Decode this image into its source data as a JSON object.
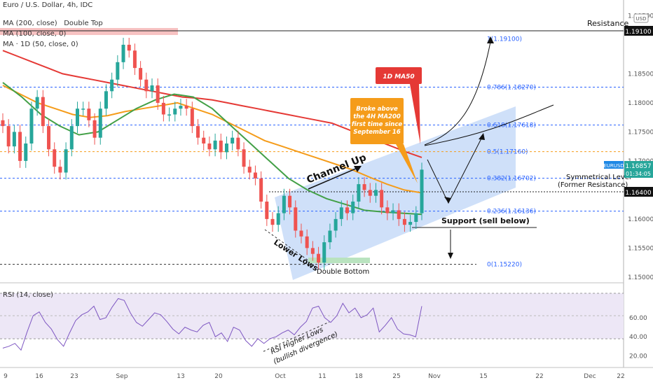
{
  "header": {
    "symbol_line": "Euro / U.S. Dollar, 4h, IDC",
    "ma200_label": "MA (200, close)",
    "ma200_note": "Double Top",
    "ma100_label": "MA (100, close, 0)",
    "ma50d_label": "MA · 1D (50, close, 0)"
  },
  "price_axis": {
    "currency": "USD",
    "ticks": [
      "1.19500",
      "1.18500",
      "1.18000",
      "1.17500",
      "1.17000",
      "1.16500",
      "1.16000",
      "1.15500",
      "1.15000"
    ],
    "top_tick": "1.19500",
    "resistance_tag": "1.19100",
    "symbol_tag": "EURUSD",
    "price_tag": "1.16857",
    "timer_tag": "01:34:05",
    "support_tag": "1.16400"
  },
  "rsi": {
    "label": "RSI (14, close)",
    "ticks": [
      "60.00",
      "40.00",
      "20.00"
    ]
  },
  "time_axis": {
    "labels": [
      "9",
      "16",
      "23",
      "Sep",
      "13",
      "20",
      "Oct",
      "11",
      "18",
      "25",
      "Nov",
      "15",
      "22",
      "Dec",
      "22"
    ]
  },
  "annotations": {
    "resistance": "Resistance",
    "ma50_box": "1D MA50",
    "breakout_note": [
      "Broke above",
      "the 4H MA200",
      "first time since",
      "September 16"
    ],
    "channel": "Channel Up",
    "symmetrical_1": "Symmetrical Level",
    "symmetrical_2": "(Former Resistance)",
    "support": "Support (sell below)",
    "lower_lows": "Lower Lows",
    "double_bottom": "Double Bottom",
    "rsi_note_1": "RSI Higher Lows",
    "rsi_note_2": "(bullish divergence)"
  },
  "fib_levels": [
    {
      "ratio": "1",
      "label": "1(1.19100)",
      "price": 1.191
    },
    {
      "ratio": "0.786",
      "label": "0.786(1.18270)",
      "price": 1.1827
    },
    {
      "ratio": "0.618",
      "label": "0.618(1.17618)",
      "price": 1.17618
    },
    {
      "ratio": "0.5",
      "label": "0.5(1.17160)",
      "price": 1.1716
    },
    {
      "ratio": "0.382",
      "label": "0.382(1.16702)",
      "price": 1.16702
    },
    {
      "ratio": "0.236",
      "label": "0.236(1.16136)",
      "price": 1.16136
    },
    {
      "ratio": "0",
      "label": "0(1.15220)",
      "price": 1.1522
    }
  ],
  "colors": {
    "up": "#26a69a",
    "down": "#ef5350",
    "ma200": "#e53935",
    "ma100": "#f59c1a",
    "ma50d": "#43a047",
    "fib": "#2962ff",
    "channel": "#bbd3f7",
    "rsi_line": "#7e57c2",
    "rsi_band": "#ede7f6"
  },
  "chart_data": {
    "type": "candlestick",
    "title": "Euro / U.S. Dollar, 4h, IDC",
    "ylim": [
      1.1495,
      1.1965
    ],
    "x_range": [
      "Aug 9",
      "Dec 29"
    ],
    "grid": false,
    "ohlc_close_path": [
      1.176,
      1.1725,
      1.175,
      1.17,
      1.173,
      1.179,
      1.181,
      1.176,
      1.172,
      1.169,
      1.168,
      1.172,
      1.176,
      1.179,
      1.179,
      1.177,
      1.174,
      1.179,
      1.182,
      1.184,
      1.187,
      1.19,
      1.189,
      1.186,
      1.184,
      1.182,
      1.183,
      1.18,
      1.178,
      1.178,
      1.179,
      1.1795,
      1.179,
      1.176,
      1.174,
      1.173,
      1.172,
      1.1735,
      1.1715,
      1.173,
      1.174,
      1.172,
      1.169,
      1.168,
      1.167,
      1.163,
      1.16,
      1.159,
      1.161,
      1.164,
      1.162,
      1.158,
      1.157,
      1.155,
      1.154,
      1.1525,
      1.156,
      1.158,
      1.16,
      1.162,
      1.161,
      1.163,
      1.166,
      1.165,
      1.164,
      1.165,
      1.162,
      1.161,
      1.1615,
      1.16,
      1.159,
      1.1595,
      1.161,
      1.1685
    ],
    "series": [
      {
        "name": "MA (200, close)",
        "values": [
          1.189,
          1.188,
          1.187,
          1.186,
          1.185,
          1.1845,
          1.184,
          1.1835,
          1.183,
          1.1825,
          1.182,
          1.1815,
          1.181,
          1.1808,
          1.1805,
          1.18,
          1.1795,
          1.179,
          1.1785,
          1.178,
          1.1775,
          1.177,
          1.1765,
          1.1755,
          1.1745,
          1.1735,
          1.1725,
          1.1715,
          1.1706
        ]
      },
      {
        "name": "MA (100, close, 0)",
        "values": [
          1.183,
          1.1815,
          1.18,
          1.179,
          1.178,
          1.1775,
          1.1778,
          1.1785,
          1.179,
          1.1795,
          1.18,
          1.179,
          1.178,
          1.1765,
          1.175,
          1.1735,
          1.1725,
          1.1715,
          1.1705,
          1.1695,
          1.1685,
          1.1672,
          1.166,
          1.165,
          1.1645
        ]
      },
      {
        "name": "MA · 1D (50, close, 0)",
        "values": [
          1.1835,
          1.181,
          1.178,
          1.176,
          1.1745,
          1.175,
          1.177,
          1.179,
          1.1805,
          1.1815,
          1.181,
          1.179,
          1.176,
          1.173,
          1.17,
          1.167,
          1.165,
          1.1635,
          1.1625,
          1.1615,
          1.1612,
          1.161,
          1.1608
        ]
      }
    ],
    "rsi_ylim": [
      10,
      95
    ],
    "rsi_values": [
      28,
      30,
      33,
      26,
      45,
      62,
      66,
      55,
      48,
      37,
      30,
      44,
      57,
      63,
      66,
      72,
      58,
      60,
      71,
      80,
      78,
      65,
      55,
      51,
      58,
      65,
      63,
      56,
      48,
      43,
      50,
      47,
      45,
      52,
      55,
      40,
      44,
      35,
      50,
      47,
      36,
      30,
      38,
      33,
      38,
      40,
      44,
      47,
      42,
      50,
      56,
      70,
      72,
      60,
      55,
      62,
      75,
      65,
      70,
      60,
      63,
      70,
      45,
      52,
      60,
      48,
      43,
      42,
      40,
      72
    ]
  }
}
